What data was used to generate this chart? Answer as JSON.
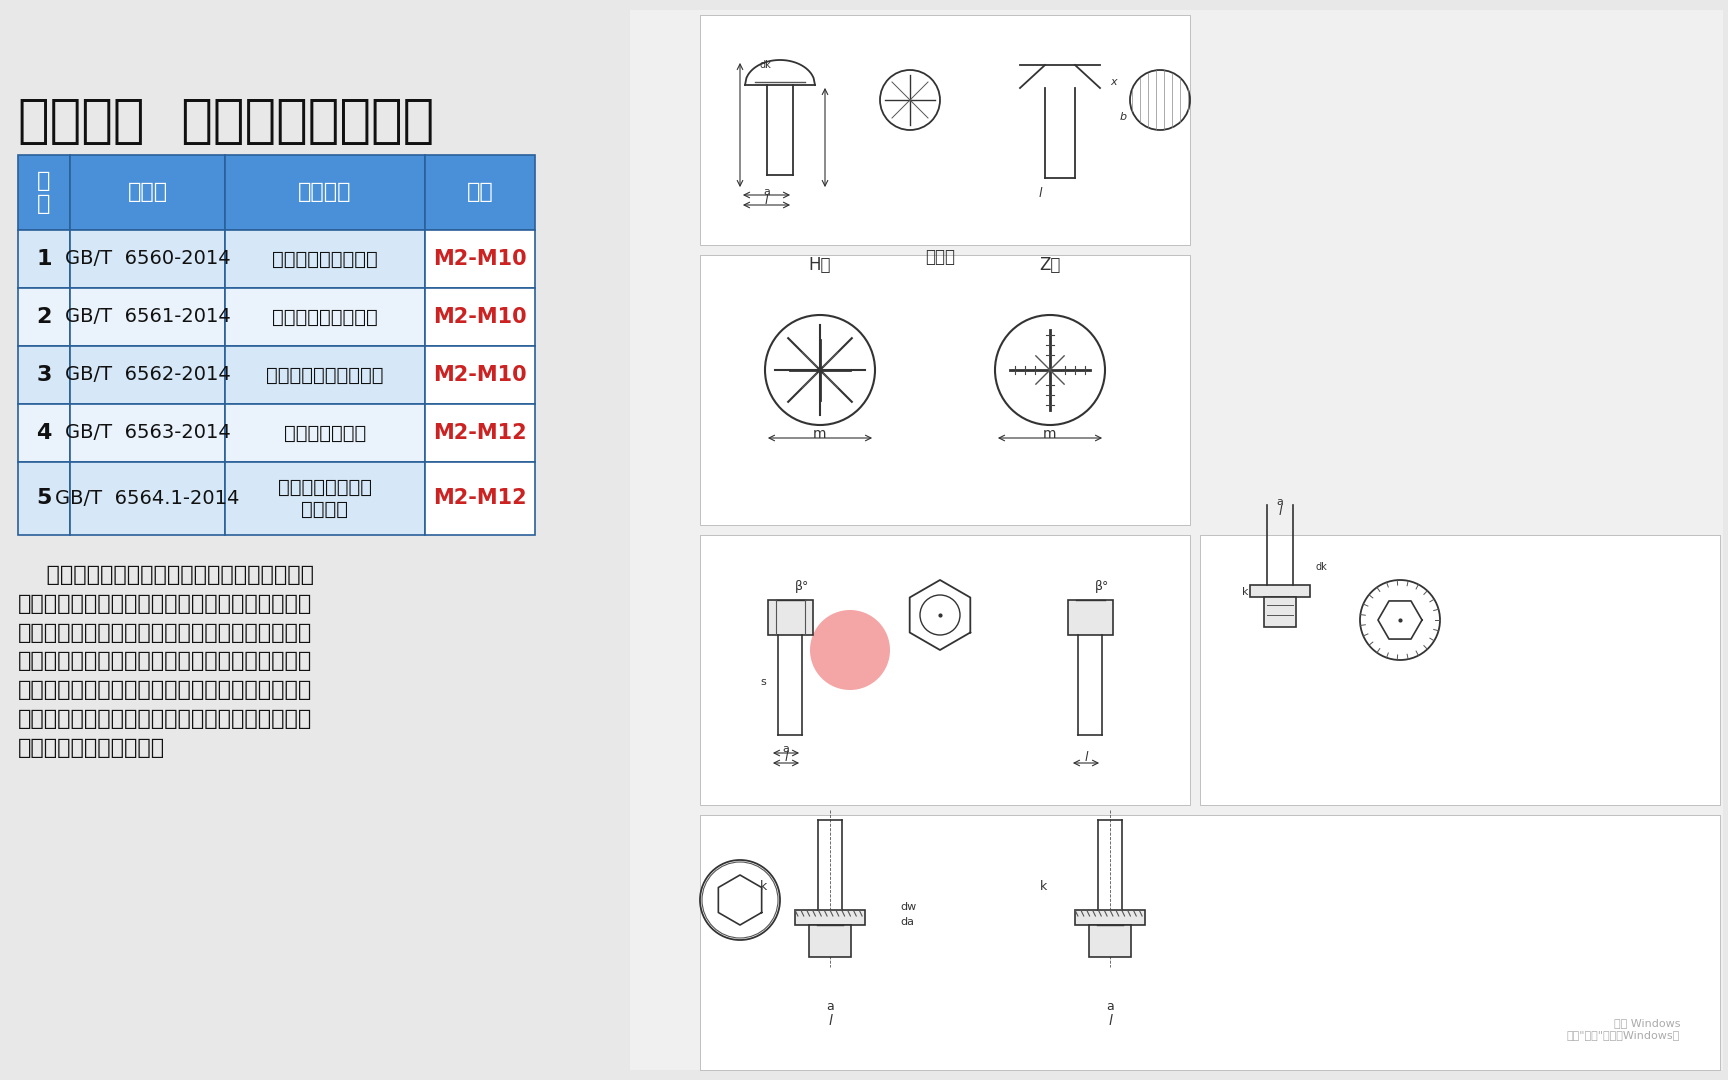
{
  "title": "自挤螺钉  （自攻锁紧螺钉）",
  "background_color": "#e8e8e8",
  "table_header_bg": "#4a90d9",
  "table_header_text_color": "#ffffff",
  "table_row_bg_odd": "#d6e8f7",
  "table_row_bg_even": "#eaf3fb",
  "table_border_color": "#2a6099",
  "table_note_bg": "#ffffff",
  "table_note_text_color": "#cc2222",
  "headers": [
    "序\n号",
    "国标号",
    "螺栓名称",
    "备注"
  ],
  "rows": [
    [
      "1",
      "GB/T  6560-2014",
      "十字槽盘头自挤螺钉",
      "M2-M10"
    ],
    [
      "2",
      "GB/T  6561-2014",
      "十字槽沉头自挤螺钉",
      "M2-M10"
    ],
    [
      "3",
      "GB/T  6562-2014",
      "十字槽半沉头自挤螺钉",
      "M2-M10"
    ],
    [
      "4",
      "GB/T  6563-2014",
      "六角头自挤螺钉",
      "M2-M12"
    ],
    [
      "5",
      "GB/T  6564.1-2014",
      "内六角花形圆柱头\n自挤螺钉",
      "M2-M12"
    ]
  ],
  "description": "    自挤螺钉（自攻锁紧螺钉）多用于薄的金属板\n之间的联接。其螺纹为具有弧形三角截面的普通螺\n纹，螺纹表面也具有较高的硬度，故在联接时，螺\n钉也可在被联接件的螺纹底孔中攻出内螺纹，从而\n形成联接。这种螺钉的特点是具有低拧入力矩和高\n锁紧性能，比普通自攻螺钉具有更好的工作性能，\n并可代替机器螺钉使用。",
  "title_fontsize": 38,
  "header_fontsize": 16,
  "cell_fontsize": 14,
  "desc_fontsize": 16
}
